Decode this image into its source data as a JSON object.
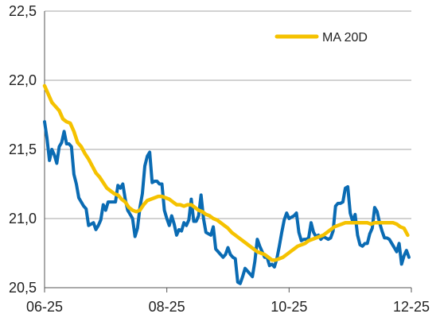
{
  "chart_data": {
    "type": "line",
    "title": "",
    "xlabel": "",
    "ylabel": "",
    "ylim": [
      20.5,
      22.5
    ],
    "x_range": [
      "06-25",
      "12-25"
    ],
    "y_ticks": [
      "20,5",
      "21,0",
      "21,5",
      "22,0",
      "22,5"
    ],
    "y_tick_values": [
      20.5,
      21.0,
      21.5,
      22.0,
      22.5
    ],
    "x_ticks": [
      "06-25",
      "08-25",
      "10-25",
      "12-25"
    ],
    "x_tick_values": [
      0,
      2,
      4,
      6
    ],
    "grid": {
      "horizontal": true,
      "vertical": false
    },
    "legend": {
      "placement": "top-right",
      "entries": [
        "MA 20D"
      ]
    },
    "colors": {
      "series": "#0a6bb3",
      "ma": "#f5c200",
      "grid": "#a6a6a6",
      "axis": "#555555"
    },
    "series": [
      {
        "id": "price",
        "x": [
          0.0,
          0.04,
          0.08,
          0.12,
          0.16,
          0.2,
          0.24,
          0.28,
          0.32,
          0.36,
          0.4,
          0.44,
          0.48,
          0.52,
          0.56,
          0.6,
          0.64,
          0.68,
          0.72,
          0.76,
          0.8,
          0.84,
          0.88,
          0.92,
          0.96,
          1.0,
          1.04,
          1.08,
          1.12,
          1.16,
          1.2,
          1.24,
          1.28,
          1.32,
          1.36,
          1.4,
          1.44,
          1.48,
          1.52,
          1.56,
          1.6,
          1.64,
          1.68,
          1.72,
          1.76,
          1.8,
          1.84,
          1.88,
          1.92,
          1.96,
          2.0,
          2.04,
          2.08,
          2.12,
          2.16,
          2.2,
          2.24,
          2.28,
          2.32,
          2.36,
          2.4,
          2.44,
          2.48,
          2.52,
          2.56,
          2.6,
          2.64,
          2.68,
          2.72,
          2.76,
          2.8,
          2.84,
          2.88,
          2.92,
          2.96,
          3.0,
          3.04,
          3.08,
          3.12,
          3.16,
          3.2,
          3.24,
          3.28,
          3.32,
          3.36,
          3.4,
          3.44,
          3.48,
          3.52,
          3.56,
          3.6,
          3.64,
          3.68,
          3.72,
          3.76,
          3.8,
          3.84,
          3.88,
          3.92,
          3.96,
          4.0,
          4.04,
          4.08,
          4.12,
          4.16,
          4.2,
          4.24,
          4.28,
          4.32,
          4.36,
          4.4,
          4.44,
          4.48,
          4.52,
          4.56,
          4.6,
          4.64,
          4.68,
          4.72,
          4.76,
          4.8,
          4.84,
          4.88,
          4.92,
          4.96,
          5.0,
          5.04,
          5.08,
          5.12,
          5.16,
          5.2,
          5.24,
          5.28,
          5.32,
          5.36,
          5.4,
          5.44,
          5.48,
          5.52,
          5.56,
          5.6,
          5.64,
          5.68,
          5.72,
          5.76,
          5.8,
          5.84,
          5.88,
          5.92,
          5.96
        ],
        "values": [
          21.7,
          21.58,
          21.42,
          21.5,
          21.46,
          21.4,
          21.52,
          21.55,
          21.63,
          21.54,
          21.54,
          21.52,
          21.32,
          21.25,
          21.15,
          21.12,
          21.09,
          21.07,
          20.95,
          20.96,
          20.97,
          20.92,
          20.95,
          20.99,
          21.1,
          21.06,
          21.12,
          21.12,
          21.12,
          21.12,
          21.24,
          21.22,
          21.25,
          21.14,
          21.06,
          21.03,
          21.0,
          20.87,
          20.93,
          21.08,
          21.18,
          21.38,
          21.45,
          21.48,
          21.26,
          21.27,
          21.27,
          21.25,
          21.25,
          21.06,
          21.0,
          20.95,
          21.02,
          20.96,
          20.88,
          20.92,
          20.91,
          20.97,
          20.95,
          20.99,
          21.14,
          20.98,
          20.98,
          21.02,
          21.17,
          21.0,
          20.9,
          20.89,
          20.88,
          20.94,
          20.78,
          20.76,
          20.74,
          20.72,
          20.74,
          20.79,
          20.74,
          20.72,
          20.71,
          20.54,
          20.53,
          20.58,
          20.64,
          20.62,
          20.6,
          20.58,
          20.69,
          20.85,
          20.8,
          20.76,
          20.72,
          20.72,
          20.66,
          20.67,
          20.65,
          20.71,
          20.8,
          20.9,
          20.99,
          21.04,
          21.0,
          21.01,
          21.02,
          21.04,
          20.9,
          20.84,
          20.85,
          20.85,
          20.86,
          20.97,
          20.9,
          20.87,
          20.88,
          20.85,
          20.87,
          20.86,
          20.85,
          20.86,
          20.91,
          21.09,
          21.11,
          21.11,
          21.12,
          21.22,
          21.23,
          21.04,
          20.98,
          21.03,
          20.88,
          20.81,
          20.8,
          20.82,
          20.82,
          20.89,
          20.93,
          21.08,
          21.05,
          20.97,
          20.91,
          20.86,
          20.86,
          20.85,
          20.82,
          20.79,
          20.76,
          20.82,
          20.67,
          20.73,
          20.77,
          20.72
        ],
        "color": "#0a6bb3"
      },
      {
        "name": "MA 20D",
        "id": "ma20",
        "x": [
          0.0,
          0.06,
          0.12,
          0.18,
          0.24,
          0.3,
          0.36,
          0.42,
          0.48,
          0.54,
          0.6,
          0.66,
          0.72,
          0.78,
          0.84,
          0.9,
          0.96,
          1.02,
          1.08,
          1.14,
          1.2,
          1.26,
          1.32,
          1.38,
          1.44,
          1.5,
          1.56,
          1.62,
          1.68,
          1.74,
          1.8,
          1.86,
          1.92,
          1.98,
          2.04,
          2.1,
          2.16,
          2.22,
          2.28,
          2.34,
          2.4,
          2.46,
          2.52,
          2.58,
          2.64,
          2.7,
          2.76,
          2.82,
          2.88,
          2.94,
          3.0,
          3.06,
          3.12,
          3.18,
          3.24,
          3.3,
          3.36,
          3.42,
          3.48,
          3.54,
          3.6,
          3.66,
          3.72,
          3.78,
          3.84,
          3.9,
          3.96,
          4.02,
          4.08,
          4.14,
          4.2,
          4.26,
          4.32,
          4.38,
          4.44,
          4.5,
          4.56,
          4.62,
          4.68,
          4.74,
          4.8,
          4.86,
          4.92,
          4.98,
          5.04,
          5.1,
          5.16,
          5.22,
          5.28,
          5.34,
          5.4,
          5.46,
          5.52,
          5.58,
          5.64,
          5.7,
          5.76,
          5.82,
          5.88,
          5.94
        ],
        "values": [
          21.96,
          21.9,
          21.84,
          21.81,
          21.78,
          21.72,
          21.7,
          21.69,
          21.63,
          21.55,
          21.52,
          21.47,
          21.43,
          21.38,
          21.33,
          21.3,
          21.26,
          21.22,
          21.2,
          21.18,
          21.17,
          21.14,
          21.12,
          21.08,
          21.06,
          21.05,
          21.06,
          21.1,
          21.13,
          21.14,
          21.15,
          21.16,
          21.16,
          21.15,
          21.14,
          21.12,
          21.1,
          21.1,
          21.09,
          21.1,
          21.1,
          21.08,
          21.06,
          21.05,
          21.03,
          21.02,
          21.0,
          20.99,
          20.97,
          20.95,
          20.93,
          20.9,
          20.88,
          20.86,
          20.84,
          20.82,
          20.8,
          20.78,
          20.76,
          20.75,
          20.74,
          20.72,
          20.7,
          20.7,
          20.71,
          20.72,
          20.74,
          20.76,
          20.78,
          20.8,
          20.81,
          20.82,
          20.84,
          20.85,
          20.86,
          20.87,
          20.88,
          20.9,
          20.92,
          20.94,
          20.95,
          20.96,
          20.97,
          20.97,
          20.97,
          20.97,
          20.97,
          20.97,
          20.97,
          20.96,
          20.97,
          20.97,
          20.97,
          20.97,
          20.97,
          20.97,
          20.96,
          20.94,
          20.93,
          20.88
        ],
        "color": "#f5c200"
      }
    ]
  }
}
